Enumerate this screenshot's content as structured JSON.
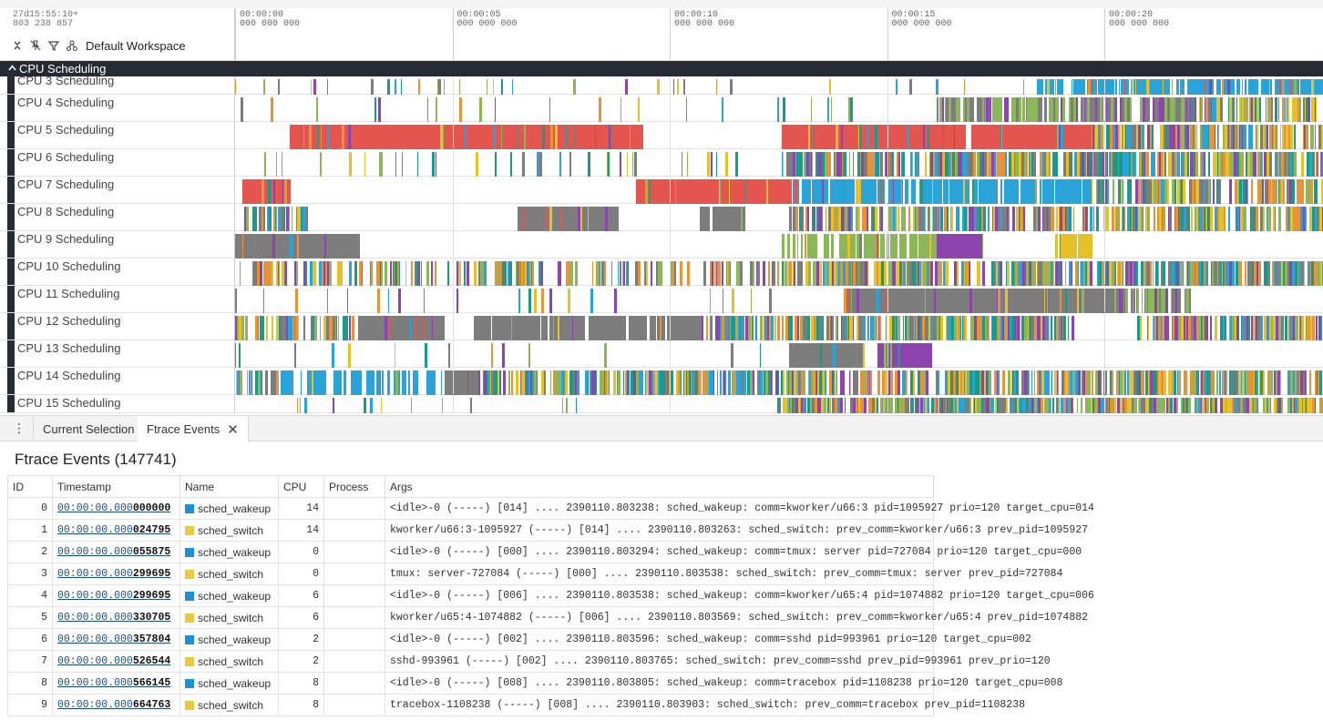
{
  "header": {
    "time_offset": "27d15:55:10+\n803 238 857",
    "workspace": "Default Workspace",
    "ruler_ticks": [
      {
        "time": "00:00:00",
        "ns": "000 000 000"
      },
      {
        "time": "00:00:05",
        "ns": "000 000 000"
      },
      {
        "time": "00:00:10",
        "ns": "000 000 000"
      },
      {
        "time": "00:00:15",
        "ns": "000 000 000"
      },
      {
        "time": "00:00:20",
        "ns": "000 000 000"
      }
    ]
  },
  "group": {
    "title": "CPU Scheduling",
    "expanded": true
  },
  "tracks": [
    {
      "name": "CPU 3 Scheduling"
    },
    {
      "name": "CPU 4 Scheduling"
    },
    {
      "name": "CPU 5 Scheduling"
    },
    {
      "name": "CPU 6 Scheduling"
    },
    {
      "name": "CPU 7 Scheduling"
    },
    {
      "name": "CPU 8 Scheduling"
    },
    {
      "name": "CPU 9 Scheduling"
    },
    {
      "name": "CPU 10 Scheduling"
    },
    {
      "name": "CPU 11 Scheduling"
    },
    {
      "name": "CPU 12 Scheduling"
    },
    {
      "name": "CPU 13 Scheduling"
    },
    {
      "name": "CPU 14 Scheduling"
    },
    {
      "name": "CPU 15 Scheduling"
    }
  ],
  "colors": {
    "red": "#e5554f",
    "grey": "#7d7d7d",
    "purple": "#8e44ad",
    "blue": "#2aa3d8",
    "green": "#8bb75a",
    "yellow": "#e6c229",
    "orange": "#e8923a",
    "teal": "#1b9a8a",
    "wakeup": "#1f8fd6",
    "switch": "#e8c93f"
  },
  "panel": {
    "tabs": [
      {
        "label": "Current Selection",
        "active": false
      },
      {
        "label": "Ftrace Events",
        "active": true
      }
    ],
    "title": "Ftrace Events (147741)",
    "columns": [
      "ID",
      "Timestamp",
      "Name",
      "CPU",
      "Process",
      "Args"
    ],
    "rows": [
      {
        "id": "0",
        "ts_prefix": "00:00:00.",
        "ts_mid": "000",
        "ts_rest": "000000",
        "name": "sched_wakeup",
        "cpu": "14",
        "process": "",
        "args": "<idle>-0 (-----) [014] .... 2390110.803238: sched_wakeup: comm=kworker/u66:3 pid=1095927 prio=120 target_cpu=014"
      },
      {
        "id": "1",
        "ts_prefix": "00:00:00.",
        "ts_mid": "000",
        "ts_rest": "024795",
        "name": "sched_switch",
        "cpu": "14",
        "process": "",
        "args": "kworker/u66:3-1095927 (-----) [014] .... 2390110.803263: sched_switch: prev_comm=kworker/u66:3 prev_pid=1095927"
      },
      {
        "id": "2",
        "ts_prefix": "00:00:00.",
        "ts_mid": "000",
        "ts_rest": "055875",
        "name": "sched_wakeup",
        "cpu": "0",
        "process": "",
        "args": "<idle>-0 (-----) [000] .... 2390110.803294: sched_wakeup: comm=tmux: server pid=727084 prio=120 target_cpu=000"
      },
      {
        "id": "3",
        "ts_prefix": "00:00:00.",
        "ts_mid": "000",
        "ts_rest": "299695",
        "name": "sched_switch",
        "cpu": "0",
        "process": "",
        "args": "tmux: server-727084 (-----) [000] .... 2390110.803538: sched_switch: prev_comm=tmux: server prev_pid=727084"
      },
      {
        "id": "4",
        "ts_prefix": "00:00:00.",
        "ts_mid": "000",
        "ts_rest": "299695",
        "name": "sched_wakeup",
        "cpu": "6",
        "process": "",
        "args": "<idle>-0 (-----) [006] .... 2390110.803538: sched_wakeup: comm=kworker/u65:4 pid=1074882 prio=120 target_cpu=006"
      },
      {
        "id": "5",
        "ts_prefix": "00:00:00.",
        "ts_mid": "000",
        "ts_rest": "330705",
        "name": "sched_switch",
        "cpu": "6",
        "process": "",
        "args": "kworker/u65:4-1074882 (-----) [006] .... 2390110.803569: sched_switch: prev_comm=kworker/u65:4 prev_pid=1074882"
      },
      {
        "id": "6",
        "ts_prefix": "00:00:00.",
        "ts_mid": "000",
        "ts_rest": "357804",
        "name": "sched_wakeup",
        "cpu": "2",
        "process": "",
        "args": "<idle>-0 (-----) [002] .... 2390110.803596: sched_wakeup: comm=sshd pid=993961 prio=120 target_cpu=002"
      },
      {
        "id": "7",
        "ts_prefix": "00:00:00.",
        "ts_mid": "000",
        "ts_rest": "526544",
        "name": "sched_switch",
        "cpu": "2",
        "process": "",
        "args": "sshd-993961 (-----) [002] .... 2390110.803765: sched_switch: prev_comm=sshd prev_pid=993961 prev_prio=120"
      },
      {
        "id": "8",
        "ts_prefix": "00:00:00.",
        "ts_mid": "000",
        "ts_rest": "566145",
        "name": "sched_wakeup",
        "cpu": "8",
        "process": "",
        "args": "<idle>-0 (-----) [008] .... 2390110.803805: sched_wakeup: comm=tracebox pid=1108238 prio=120 target_cpu=008"
      },
      {
        "id": "9",
        "ts_prefix": "00:00:00.",
        "ts_mid": "000",
        "ts_rest": "664763",
        "name": "sched_switch",
        "cpu": "8",
        "process": "",
        "args": "tracebox-1108238 (-----) [008] .... 2390110.803903: sched_switch: prev_comm=tracebox prev_pid=1108238"
      }
    ]
  }
}
